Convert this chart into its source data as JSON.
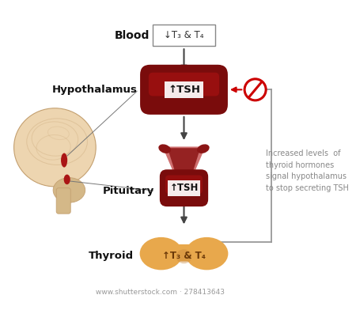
{
  "bg_color": "#ffffff",
  "blood_box_text": "↓T₃ & T₄",
  "blood_label": "Blood",
  "hypothalamus_label": "Hypothalamus",
  "hypothalamus_text": "↑TSH",
  "pituitary_label": "Pituitary",
  "pituitary_text": "↑TSH",
  "thyroid_label": "Thyroid",
  "thyroid_text": "↑T₃ & T₄",
  "side_text": "Increased levels  of\nthyroid hormones\nsignal hypothalamus\nto stop secreting TSH",
  "watermark": "www.shutterstock.com · 278413643",
  "dark_red": "#A01010",
  "dark_red2": "#7A0C0C",
  "medium_red": "#C84040",
  "light_red": "#E89080",
  "pink_red": "#D4756A",
  "thyroid_color": "#E8A84C",
  "thyroid_dark": "#C8883C",
  "arrow_color": "#444444",
  "label_color": "#1a1a1a",
  "box_outline": "#888888",
  "no_sign_color": "#CC0000",
  "feedback_line_color": "#999999",
  "brain_fill": "#EDD5B0",
  "brain_edge": "#C4A070",
  "brain_dark": "#D4B888"
}
